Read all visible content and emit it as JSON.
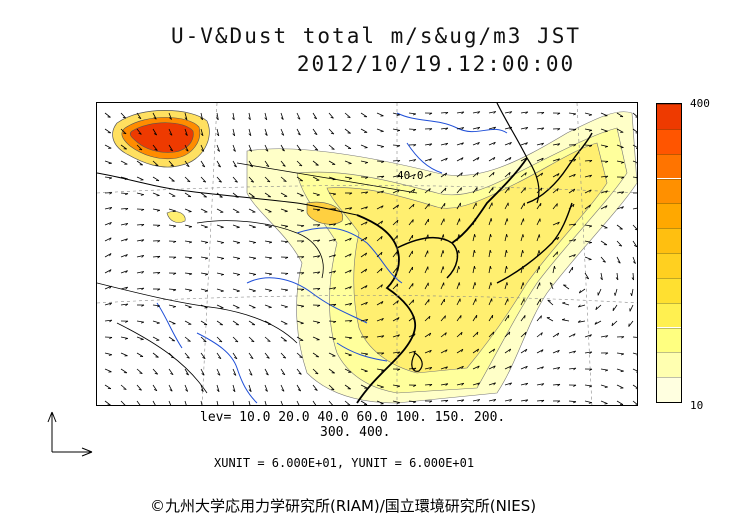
{
  "title": {
    "line1": "U-V&Dust total m/s&ug/m3 JST",
    "line2": "2012/10/19.12:00:00"
  },
  "map": {
    "contour_label": "40.0"
  },
  "colorbar": {
    "max_label": "400",
    "min_label": "10",
    "colors": [
      "#ffffe0",
      "#ffffb0",
      "#ffff80",
      "#fff050",
      "#ffe030",
      "#ffd020",
      "#ffbf10",
      "#ffa800",
      "#ff9000",
      "#ff7400",
      "#ff5500",
      "#ee3a00"
    ]
  },
  "levels": {
    "line1": "lev= 10.0 20.0 40.0 60.0 100. 150. 200.",
    "line2": "300. 400."
  },
  "units": "XUNIT = 6.000E+01, YUNIT = 6.000E+01",
  "copyright": "©九州大学応用力学研究所(RIAM)/国立環境研究所(NIES)"
}
